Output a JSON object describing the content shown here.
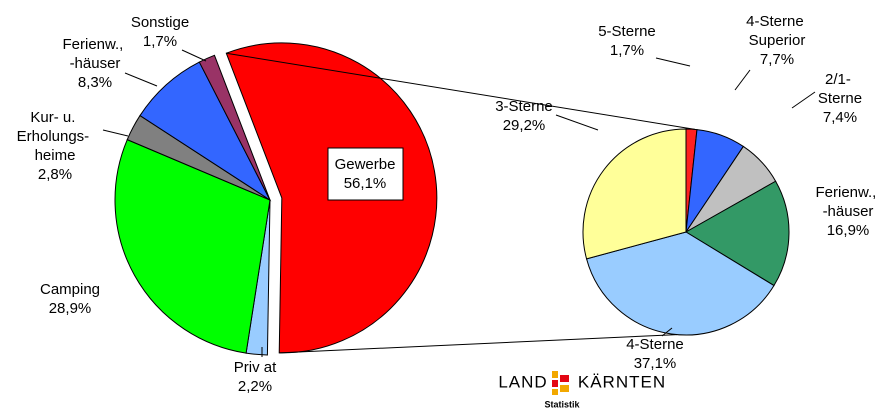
{
  "chart_data": [
    {
      "type": "pie",
      "categories": [
        "Gewerbe",
        "Priv at",
        "Camping",
        "Kur- u. Erholungs- heime",
        "Ferienw., -häuser",
        "Sonstige"
      ],
      "values": [
        56.1,
        2.2,
        28.9,
        2.8,
        8.3,
        1.7
      ],
      "value_labels": [
        "56,1%",
        "2,2%",
        "28,9%",
        "2,8%",
        "8,3%",
        "1,7%"
      ],
      "colors": [
        "#ff0000",
        "#99ccff",
        "#00ff00",
        "#808080",
        "#3366ff",
        "#993366"
      ]
    },
    {
      "type": "pie",
      "categories": [
        "5-Sterne",
        "4-Sterne Superior",
        "2/1- Sterne",
        "Ferienw., -häuser",
        "4-Sterne",
        "3-Sterne"
      ],
      "values": [
        1.7,
        7.7,
        7.4,
        16.9,
        37.1,
        29.2
      ],
      "value_labels": [
        "1,7%",
        "7,7%",
        "7,4%",
        "16,9%",
        "37,1%",
        "29,2%"
      ],
      "colors": [
        "#ff2020",
        "#3366ff",
        "#c0c0c0",
        "#339966",
        "#99ccff",
        "#ffff99"
      ]
    }
  ],
  "logo": {
    "left": "LAND",
    "right": "KÄRNTEN",
    "sub": "Statistik"
  }
}
